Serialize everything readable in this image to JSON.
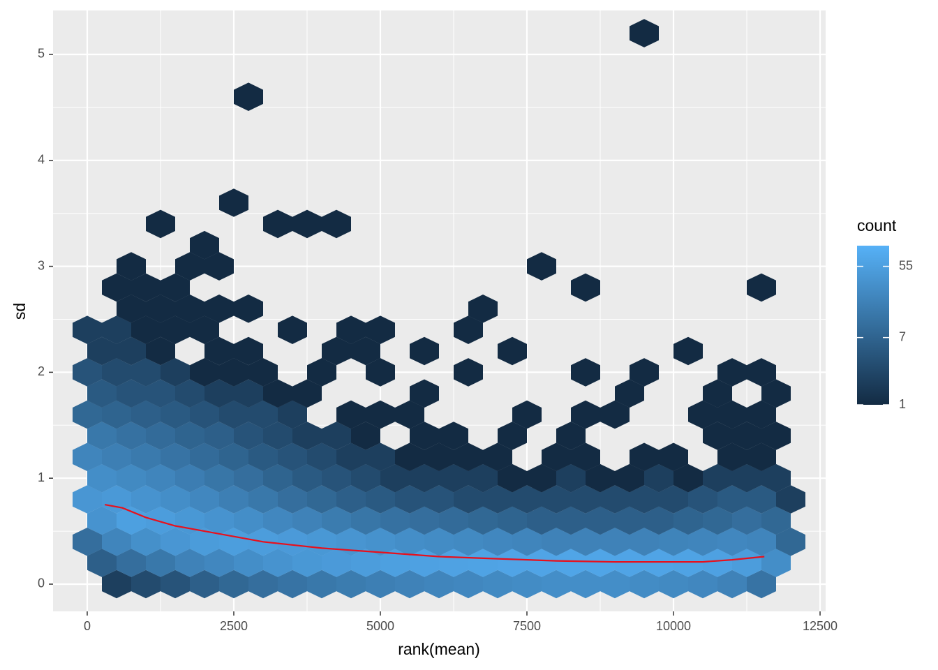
{
  "chart_data": {
    "type": "hexbin",
    "x_label": "rank(mean)",
    "y_label": "sd",
    "xlim": [
      -583,
      12595
    ],
    "ylim": [
      -0.257,
      5.415
    ],
    "xticks": [
      0,
      2500,
      5000,
      7500,
      10000,
      12500
    ],
    "yticks": [
      0,
      1,
      2,
      3,
      4,
      5
    ],
    "grid": true,
    "legend_title": "count",
    "fill_colors": [
      "#132B43",
      "#56B1F7"
    ],
    "fill_lim": [
      1,
      100
    ],
    "fill_log": true,
    "fill_ticks": [
      1,
      7,
      55
    ],
    "rows": [
      {
        "y": 0,
        "x": [
          500,
          1000,
          1500,
          2000,
          2500,
          3000,
          3500,
          4000,
          4500,
          5000,
          5500,
          6000,
          6500,
          7000,
          7500,
          8000,
          8500,
          9000,
          9500,
          10000,
          10500,
          11000,
          11500
        ],
        "count": [
          2,
          3,
          4,
          6,
          8,
          10,
          12,
          14,
          16,
          18,
          20,
          22,
          24,
          26,
          28,
          30,
          30,
          30,
          28,
          26,
          24,
          20,
          12
        ]
      },
      {
        "y": 0.2,
        "x": [
          250,
          750,
          1250,
          1750,
          2250,
          2750,
          3250,
          3750,
          4250,
          4750,
          5250,
          5750,
          6250,
          6750,
          7250,
          7750,
          8250,
          8750,
          9250,
          9750,
          10250,
          10750,
          11250,
          11750
        ],
        "count": [
          6,
          10,
          14,
          20,
          24,
          30,
          36,
          42,
          46,
          50,
          55,
          58,
          60,
          62,
          64,
          65,
          66,
          66,
          65,
          64,
          62,
          58,
          50,
          30
        ]
      },
      {
        "y": 0.4,
        "x": [
          0,
          500,
          1000,
          1500,
          2000,
          2500,
          3000,
          3500,
          4000,
          4500,
          5000,
          5500,
          6000,
          6500,
          7000,
          7500,
          8000,
          8500,
          9000,
          9500,
          10000,
          10500,
          11000,
          11500,
          12000
        ],
        "count": [
          10,
          22,
          32,
          40,
          48,
          52,
          50,
          46,
          42,
          38,
          34,
          30,
          28,
          26,
          24,
          22,
          20,
          20,
          20,
          20,
          21,
          22,
          24,
          22,
          8
        ]
      },
      {
        "y": 0.6,
        "x": [
          250,
          750,
          1250,
          1750,
          2250,
          2750,
          3250,
          3750,
          4250,
          4750,
          5250,
          5750,
          6250,
          6750,
          7250,
          7750,
          8250,
          8750,
          9250,
          9750,
          10250,
          10750,
          11250,
          11750
        ],
        "count": [
          36,
          55,
          50,
          42,
          36,
          30,
          24,
          20,
          16,
          13,
          11,
          10,
          9,
          8,
          7,
          6,
          6,
          6,
          6,
          6,
          7,
          8,
          10,
          8
        ]
      },
      {
        "y": 0.8,
        "x": [
          0,
          500,
          1000,
          1500,
          2000,
          2500,
          3000,
          3500,
          4000,
          4500,
          5000,
          5500,
          6000,
          6500,
          7000,
          7500,
          8000,
          8500,
          9000,
          9500,
          10000,
          10500,
          11000,
          11500,
          12000
        ],
        "count": [
          40,
          44,
          36,
          30,
          24,
          18,
          14,
          10,
          8,
          6,
          5,
          4,
          4,
          3,
          3,
          3,
          3,
          3,
          3,
          3,
          3,
          4,
          5,
          5,
          2
        ]
      },
      {
        "y": 1,
        "x": [
          250,
          750,
          1250,
          1750,
          2250,
          2750,
          3250,
          3750,
          4250,
          4750,
          5250,
          5750,
          6250,
          6750,
          7250,
          7750,
          8250,
          8750,
          9250,
          9750,
          10250,
          10750,
          11250,
          11750
        ],
        "count": [
          30,
          26,
          22,
          17,
          13,
          10,
          7,
          5,
          4,
          3,
          2,
          2,
          2,
          2,
          1,
          1,
          2,
          1,
          1,
          2,
          1,
          2,
          2,
          2
        ]
      },
      {
        "y": 1.2,
        "x": [
          0,
          500,
          1000,
          1500,
          2000,
          2500,
          3000,
          3500,
          4000,
          4500,
          5000,
          5500,
          6000,
          6500,
          7000,
          8000,
          8500,
          9500,
          10000,
          11000,
          11500
        ],
        "count": [
          22,
          18,
          15,
          12,
          9,
          7,
          5,
          4,
          3,
          2,
          2,
          1,
          1,
          1,
          1,
          1,
          1,
          1,
          1,
          1,
          1
        ]
      },
      {
        "y": 1.4,
        "x": [
          250,
          750,
          1250,
          1750,
          2250,
          2750,
          3250,
          3750,
          4250,
          4750,
          5750,
          6250,
          7250,
          8250,
          10750,
          11250,
          11750
        ],
        "count": [
          14,
          11,
          9,
          7,
          6,
          4,
          3,
          2,
          2,
          1,
          1,
          1,
          1,
          1,
          1,
          1,
          1
        ]
      },
      {
        "y": 1.6,
        "x": [
          0,
          500,
          1000,
          1500,
          2000,
          2500,
          3000,
          3500,
          4500,
          5000,
          5500,
          7500,
          8500,
          9000,
          10500,
          11000,
          11500
        ],
        "count": [
          8,
          7,
          6,
          5,
          4,
          3,
          3,
          2,
          1,
          1,
          1,
          1,
          1,
          1,
          1,
          1,
          1
        ]
      },
      {
        "y": 1.8,
        "x": [
          250,
          750,
          1250,
          1750,
          2250,
          2750,
          3250,
          3750,
          5750,
          9250,
          10750,
          11750
        ],
        "count": [
          5,
          4,
          4,
          3,
          2,
          2,
          1,
          1,
          1,
          1,
          1,
          1
        ]
      },
      {
        "y": 2,
        "x": [
          0,
          500,
          1000,
          1500,
          2000,
          2500,
          3000,
          4000,
          5000,
          6500,
          8500,
          9500,
          11000,
          11500
        ],
        "count": [
          4,
          3,
          3,
          2,
          1,
          1,
          1,
          1,
          1,
          1,
          1,
          1,
          1,
          1
        ]
      },
      {
        "y": 2.2,
        "x": [
          250,
          750,
          1250,
          2250,
          2750,
          4250,
          4750,
          5750,
          7250,
          10250
        ],
        "count": [
          2,
          2,
          1,
          1,
          1,
          1,
          1,
          1,
          1,
          1
        ]
      },
      {
        "y": 2.4,
        "x": [
          0,
          500,
          1000,
          1500,
          2000,
          3500,
          4500,
          5000,
          6500
        ],
        "count": [
          2,
          2,
          1,
          1,
          1,
          1,
          1,
          1,
          1
        ]
      },
      {
        "y": 2.6,
        "x": [
          750,
          1250,
          1750,
          2250,
          2750,
          6750
        ],
        "count": [
          1,
          1,
          1,
          1,
          1,
          1
        ]
      },
      {
        "y": 2.8,
        "x": [
          500,
          1000,
          1500,
          8500,
          11500
        ],
        "count": [
          1,
          1,
          1,
          1,
          1
        ]
      },
      {
        "y": 3,
        "x": [
          750,
          1750,
          2250,
          7750
        ],
        "count": [
          1,
          1,
          1,
          1
        ]
      },
      {
        "y": 3.2,
        "x": [
          2000
        ],
        "count": [
          1
        ]
      },
      {
        "y": 3.4,
        "x": [
          1250,
          3250,
          3750,
          4250
        ],
        "count": [
          1,
          1,
          1,
          1
        ]
      },
      {
        "y": 3.6,
        "x": [
          2500
        ],
        "count": [
          1
        ]
      },
      {
        "y": 4.6,
        "x": [
          2750
        ],
        "count": [
          1
        ]
      },
      {
        "y": 5.2,
        "x": [
          9500
        ],
        "count": [
          1
        ]
      }
    ],
    "trend": {
      "color": "#e8101c",
      "x": [
        300,
        600,
        1000,
        1500,
        2000,
        2500,
        3000,
        3500,
        4000,
        5000,
        6000,
        7000,
        8000,
        9000,
        9500,
        10000,
        10500,
        11000,
        11550
      ],
      "y": [
        0.75,
        0.72,
        0.63,
        0.55,
        0.5,
        0.45,
        0.4,
        0.37,
        0.34,
        0.3,
        0.26,
        0.24,
        0.22,
        0.21,
        0.21,
        0.21,
        0.21,
        0.23,
        0.26
      ]
    }
  }
}
